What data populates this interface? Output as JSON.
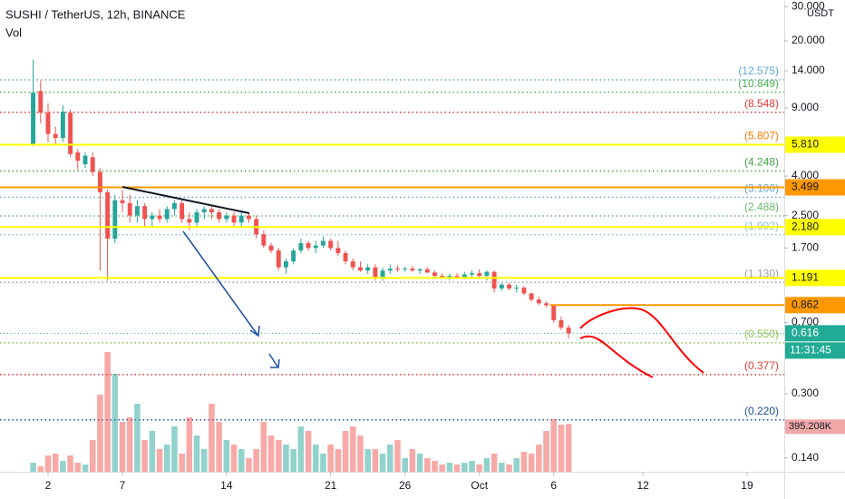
{
  "chart_data": {
    "type": "candlestick",
    "title": "SUSHI / TetherUS, 12h, BINANCE",
    "volume_title": "Vol",
    "currency": "USDT",
    "log_scale": true,
    "up_color": "#26a69a",
    "down_color": "#ef5350",
    "xlim": [
      -4.46,
      101
    ],
    "xticks": [
      {
        "value": 2,
        "label": "2"
      },
      {
        "value": 12,
        "label": "7"
      },
      {
        "value": 26,
        "label": "14"
      },
      {
        "value": 40,
        "label": "21"
      },
      {
        "value": 50,
        "label": "26"
      },
      {
        "value": 60,
        "label": "Oct"
      },
      {
        "value": 70,
        "label": "6"
      },
      {
        "value": 82,
        "label": "12"
      },
      {
        "value": 96,
        "label": "19"
      }
    ],
    "ylim": [
      0.1186,
      32.5
    ],
    "yticks": [
      {
        "value": 30,
        "label": "30.000"
      },
      {
        "value": 20,
        "label": "20.000"
      },
      {
        "value": 14,
        "label": "14.000"
      },
      {
        "value": 9,
        "label": "9.000"
      },
      {
        "value": 4,
        "label": "4.000"
      },
      {
        "value": 2.5,
        "label": "2.500"
      },
      {
        "value": 1.7,
        "label": "1.700"
      },
      {
        "value": 0.7,
        "label": "0.700"
      },
      {
        "value": 0.3,
        "label": "0.300"
      },
      {
        "value": 0.2,
        "label": "0.200"
      },
      {
        "value": 0.14,
        "label": "0.140"
      }
    ],
    "open": [
      5.8,
      11,
      8.5,
      6.6,
      6.3,
      8.5,
      5.3,
      4.6,
      5,
      4.2,
      3.3,
      1.9,
      3,
      2.9,
      2.5,
      2.8,
      2.4,
      2.5,
      2.4,
      2.7,
      2.9,
      2.4,
      2.3,
      2.6,
      2.7,
      2.6,
      2.4,
      2.5,
      2.3,
      2.5,
      2.4,
      2,
      1.75,
      1.65,
      1.35,
      1.45,
      1.65,
      1.8,
      1.7,
      1.75,
      1.85,
      1.7,
      1.6,
      1.45,
      1.35,
      1.3,
      1.35,
      1.2,
      1.3,
      1.33,
      1.32,
      1.33,
      1.3,
      1.32,
      1.27,
      1.22,
      1.2,
      1.22,
      1.2,
      1.24,
      1.26,
      1.22,
      1.28,
      1.05,
      1.1,
      1.05,
      1.06,
      0.99,
      0.92,
      0.88,
      0.86,
      0.72,
      0.66
    ],
    "high": [
      16,
      12.5,
      9.5,
      7.2,
      9.3,
      8.8,
      5.5,
      5.3,
      5.3,
      4.4,
      3.4,
      3.2,
      3.4,
      3.2,
      3,
      2.9,
      2.6,
      2.7,
      2.8,
      3,
      3,
      2.6,
      2.7,
      2.8,
      2.8,
      2.7,
      2.6,
      2.6,
      2.6,
      2.6,
      2.5,
      2.1,
      1.8,
      1.7,
      1.5,
      1.7,
      1.9,
      1.85,
      1.85,
      1.95,
      1.9,
      1.85,
      1.65,
      1.5,
      1.45,
      1.4,
      1.4,
      1.35,
      1.4,
      1.38,
      1.36,
      1.37,
      1.34,
      1.35,
      1.3,
      1.26,
      1.25,
      1.26,
      1.28,
      1.3,
      1.32,
      1.3,
      1.3,
      1.12,
      1.12,
      1.1,
      1.08,
      1,
      0.95,
      0.9,
      0.87,
      0.75,
      0.68
    ],
    "low": [
      5.7,
      7.5,
      6,
      5.8,
      6,
      5,
      4.3,
      4.4,
      4,
      1.3,
      1.15,
      1.8,
      2.6,
      2.3,
      2.3,
      2.2,
      2.2,
      2.3,
      2.3,
      2.5,
      2.3,
      2.1,
      2.2,
      2.4,
      2.4,
      2.3,
      2.3,
      2.2,
      2.2,
      2.3,
      1.9,
      1.7,
      1.6,
      1.3,
      1.25,
      1.4,
      1.6,
      1.65,
      1.6,
      1.7,
      1.65,
      1.55,
      1.4,
      1.3,
      1.28,
      1.25,
      1.15,
      1.15,
      1.25,
      1.28,
      1.28,
      1.28,
      1.25,
      1.26,
      1.2,
      1.18,
      1.16,
      1.18,
      1.18,
      1.2,
      1.2,
      1.15,
      1,
      1.02,
      1.03,
      1,
      0.97,
      0.9,
      0.86,
      0.84,
      0.7,
      0.64,
      0.58
    ],
    "close": [
      10.8,
      8.5,
      6.6,
      6.3,
      8.6,
      5.2,
      4.8,
      5.1,
      4.2,
      3.3,
      1.9,
      3,
      2.9,
      2.5,
      2.8,
      2.4,
      2.5,
      2.4,
      2.7,
      2.9,
      2.4,
      2.3,
      2.6,
      2.7,
      2.6,
      2.4,
      2.5,
      2.3,
      2.5,
      2.4,
      2,
      1.75,
      1.65,
      1.35,
      1.45,
      1.65,
      1.8,
      1.7,
      1.75,
      1.85,
      1.7,
      1.6,
      1.45,
      1.35,
      1.3,
      1.35,
      1.2,
      1.3,
      1.33,
      1.32,
      1.33,
      1.3,
      1.32,
      1.27,
      1.22,
      1.2,
      1.22,
      1.2,
      1.24,
      1.26,
      1.22,
      1.28,
      1.05,
      1.1,
      1.05,
      1.06,
      0.99,
      0.92,
      0.88,
      0.86,
      0.72,
      0.66,
      0.616
    ],
    "volume": [
      75000,
      45000,
      135000,
      150000,
      90000,
      135000,
      75000,
      60000,
      262500,
      637500,
      990000,
      810000,
      412500,
      450000,
      562500,
      262500,
      337500,
      187500,
      225000,
      375000,
      150000,
      450000,
      300000,
      187500,
      562500,
      412500,
      262500,
      225000,
      187500,
      112500,
      187500,
      412500,
      300000,
      262500,
      225000,
      187500,
      375000,
      337500,
      225000,
      150000,
      225000,
      187500,
      337500,
      375000,
      300000,
      187500,
      187500,
      150000,
      225000,
      262500,
      112500,
      187500,
      150000,
      112500,
      90000,
      60000,
      75000,
      60000,
      75000,
      90000,
      60000,
      112500,
      150000,
      75000,
      60000,
      112500,
      165000,
      150000,
      225000,
      337500,
      435000,
      390000,
      395208
    ],
    "volume_lim": [
      0,
      1050000
    ],
    "volume_label": "395.208K",
    "countdown": "11:31:45",
    "last_color": "#22ab94",
    "levels": [
      {
        "value": 12.575,
        "label": "(12.575)",
        "color": "#5fa8d3"
      },
      {
        "value": 10.849,
        "label": "(10.849)",
        "color": "#4caf50"
      },
      {
        "value": 8.548,
        "label": "(8.548)",
        "color": "#e53935"
      },
      {
        "value": 5.807,
        "label": "(5.807)",
        "color": "#f57c00"
      },
      {
        "value": 4.248,
        "label": "(4.248)",
        "color": "#43a047"
      },
      {
        "value": 3.106,
        "label": "(3.106)",
        "color": "#5fa8d3"
      },
      {
        "value": 2.488,
        "label": "(2.488)",
        "color": "#66bb6a"
      },
      {
        "value": 1.992,
        "label": "(1.992)",
        "color": "#90bfe0"
      },
      {
        "value": 1.13,
        "label": "(1.130)",
        "color": "#9e9e9e"
      },
      {
        "value": 0.55,
        "label": "(0.550)",
        "color": "#8bc34a"
      },
      {
        "value": 0.377,
        "label": "(0.377)",
        "color": "#e53935"
      },
      {
        "value": 0.22,
        "label": "(0.220)",
        "color": "#1e50a2"
      }
    ],
    "lines": [
      {
        "value": 5.81,
        "label": "5.810",
        "color": "#ffff00"
      },
      {
        "value": 3.499,
        "label": "3.499",
        "color": "#ff9800"
      },
      {
        "value": 2.18,
        "label": "2.180",
        "color": "#ffff00"
      },
      {
        "value": 1.191,
        "label": "1.191",
        "color": "#ffff00"
      },
      {
        "value": 0.862,
        "label": "0.862",
        "color": "#ff9800",
        "start": 69.5
      }
    ]
  }
}
